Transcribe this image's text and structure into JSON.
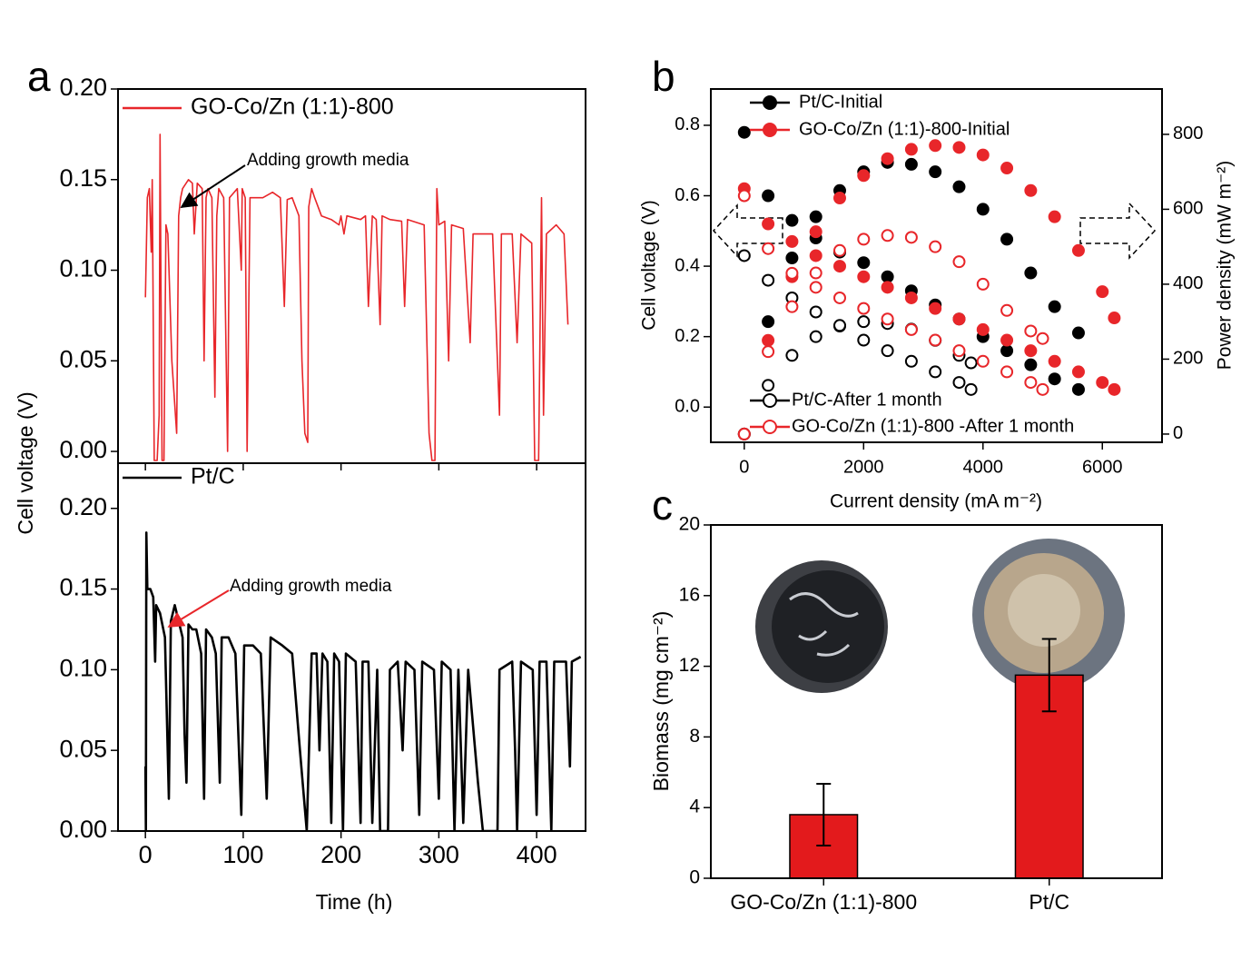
{
  "chart_data": [
    {
      "type": "line",
      "panel_label": "a",
      "series": [
        {
          "name": "GO-Co/Zn (1:1)-800",
          "color": "#e8262a",
          "x": [
            0,
            2,
            4,
            6,
            7,
            9,
            12,
            14,
            15,
            17,
            19,
            21,
            23,
            27,
            32,
            34,
            36,
            38,
            44,
            48,
            50,
            53,
            58,
            60,
            62,
            64,
            68,
            71,
            73,
            75,
            80,
            84,
            86,
            94,
            98,
            99,
            102,
            104,
            107,
            120,
            130,
            138,
            142,
            145,
            150,
            157,
            160,
            163,
            166,
            167,
            170,
            173,
            180,
            190,
            198,
            200,
            203,
            206,
            220,
            225,
            228,
            232,
            236,
            240,
            242,
            250,
            262,
            265,
            268,
            285,
            290,
            293,
            296,
            298,
            300,
            306,
            310,
            313,
            325,
            332,
            335,
            355,
            362,
            364,
            375,
            380,
            384,
            395,
            398,
            402,
            405,
            407,
            410,
            420,
            428,
            432
          ],
          "values": [
            0.085,
            0.14,
            0.145,
            0.11,
            0.15,
            -0.005,
            -0.005,
            0.02,
            0.175,
            -0.005,
            -0.005,
            0.125,
            0.12,
            0.05,
            0.01,
            0.13,
            0.14,
            0.145,
            0.15,
            0.148,
            0.12,
            0.148,
            0.145,
            0.05,
            0.14,
            0.145,
            0.14,
            0.03,
            0.13,
            0.145,
            0.14,
            0.0,
            0.14,
            0.145,
            0.1,
            0.145,
            0.14,
            0.0,
            0.14,
            0.14,
            0.143,
            0.14,
            0.08,
            0.139,
            0.14,
            0.13,
            0.05,
            0.01,
            0.005,
            0.135,
            0.145,
            0.14,
            0.13,
            0.128,
            0.125,
            0.13,
            0.12,
            0.13,
            0.128,
            0.13,
            0.08,
            0.13,
            0.128,
            0.07,
            0.13,
            0.128,
            0.127,
            0.08,
            0.128,
            0.125,
            0.01,
            -0.005,
            -0.005,
            0.145,
            0.125,
            0.127,
            0.05,
            0.125,
            0.123,
            0.06,
            0.12,
            0.12,
            0.02,
            0.12,
            0.12,
            0.06,
            0.12,
            0.115,
            -0.005,
            -0.005,
            0.14,
            0.02,
            0.12,
            0.125,
            0.12,
            0.07
          ]
        }
      ],
      "ylim": [
        -0.0065,
        0.2
      ],
      "yticks": [
        {
          "value": 0,
          "label": "0.00"
        },
        0.05,
        {
          "value": 0.1,
          "label": "0.10"
        },
        0.15,
        {
          "value": 0.2,
          "label": "0.20"
        }
      ],
      "annotations": [
        {
          "text": "Adding growth media",
          "arrow_color": "#000000"
        }
      ]
    },
    {
      "type": "line",
      "series": [
        {
          "name": "Pt/C",
          "color": "#000000",
          "x": [
            0,
            0.5,
            1,
            2,
            5,
            8,
            10,
            11,
            15,
            20,
            24,
            26,
            30,
            34,
            38,
            40,
            42,
            44,
            48,
            52,
            57,
            60,
            62,
            68,
            72,
            76,
            78,
            85,
            92,
            98,
            101,
            110,
            118,
            124,
            128,
            140,
            150,
            158,
            165,
            170,
            175,
            178,
            181,
            186,
            190,
            193,
            198,
            202,
            205,
            215,
            220,
            222,
            228,
            232,
            237,
            240,
            248,
            250,
            258,
            263,
            266,
            275,
            280,
            283,
            295,
            300,
            303,
            312,
            316,
            320,
            325,
            330,
            340,
            345,
            360,
            362,
            375,
            378,
            380,
            384,
            396,
            400,
            403,
            410,
            415,
            418,
            430,
            434,
            436,
            445
          ],
          "values": [
            0.04,
            0.0,
            0.185,
            0.15,
            0.15,
            0.145,
            0.105,
            0.14,
            0.135,
            0.12,
            0.02,
            0.13,
            0.14,
            0.13,
            0.12,
            0.06,
            0.03,
            0.128,
            0.125,
            0.125,
            0.11,
            0.02,
            0.125,
            0.12,
            0.11,
            0.03,
            0.12,
            0.12,
            0.11,
            0.01,
            0.115,
            0.115,
            0.11,
            0.02,
            0.12,
            0.115,
            0.11,
            0.05,
            0.0,
            0.11,
            0.11,
            0.05,
            0.11,
            0.105,
            0.005,
            0.11,
            0.105,
            0.0,
            0.11,
            0.105,
            0.005,
            0.105,
            0.105,
            0.005,
            0.1,
            0.0,
            0.0,
            0.1,
            0.105,
            0.05,
            0.105,
            0.1,
            0.01,
            0.105,
            0.1,
            0.02,
            0.105,
            0.1,
            0.0,
            0.1,
            0.005,
            0.1,
            0.03,
            0.0,
            0.0,
            0.1,
            0.105,
            0.05,
            0.0,
            0.105,
            0.1,
            0.01,
            0.105,
            0.105,
            0.0,
            0.105,
            0.105,
            0.04,
            0.105,
            0.108
          ]
        }
      ],
      "x_label": "Time (h)",
      "y_label": "Cell voltage (V)",
      "xlim": [
        -28,
        450
      ],
      "xticks": [
        0,
        100,
        200,
        300,
        400
      ],
      "ylim": [
        0,
        0.228
      ],
      "yticks": [
        {
          "value": 0,
          "label": "0.00"
        },
        0.05,
        {
          "value": 0.1,
          "label": "0.10"
        },
        0.15,
        {
          "value": 0.2,
          "label": "0.20"
        }
      ],
      "annotations": [
        {
          "text": "Adding growth media",
          "arrow_color": "#e8262a"
        }
      ]
    },
    {
      "type": "scatter",
      "panel_label": "b",
      "x_label": "Current density (mA m⁻²)",
      "y_label": "Cell voltage (V)",
      "y2_label": "Power density (mW m⁻²)",
      "xlim": [
        -560,
        7000
      ],
      "xticks": [
        0,
        2000,
        4000,
        6000
      ],
      "ylim": [
        -0.1,
        0.903
      ],
      "yticks": [
        {
          "value": 0,
          "label": "0.0"
        },
        0.2,
        0.4,
        0.6,
        0.8
      ],
      "y2lim": [
        -22,
        921
      ],
      "y2ticks": [
        0,
        200,
        400,
        600,
        800
      ],
      "series": [
        {
          "name": "Pt/C-Initial",
          "color": "#000000",
          "marker": "filled",
          "x": [
            0,
            400,
            800,
            1200,
            1600,
            2000,
            2400,
            2800,
            3200,
            3600,
            4000,
            4400,
            4800,
            5200,
            5600
          ],
          "values": [
            0.78,
            0.6,
            0.53,
            0.48,
            0.44,
            0.41,
            0.37,
            0.33,
            0.29,
            0.25,
            0.2,
            0.16,
            0.12,
            0.08,
            0.05
          ],
          "power": [
            0,
            300,
            470,
            580,
            650,
            700,
            725,
            720,
            700,
            660,
            600,
            520,
            430,
            340,
            270
          ]
        },
        {
          "name": "GO-Co/Zn (1:1)-800-Initial",
          "color": "#e8262a",
          "marker": "filled",
          "x": [
            0,
            400,
            800,
            1200,
            1600,
            2000,
            2400,
            2800,
            3200,
            3600,
            4000,
            4400,
            4800,
            5200,
            5600,
            6000,
            6200
          ],
          "values": [
            0.62,
            0.52,
            0.47,
            0.43,
            0.4,
            0.37,
            0.34,
            0.31,
            0.28,
            0.25,
            0.22,
            0.19,
            0.16,
            0.13,
            0.1,
            0.07,
            0.05
          ],
          "power": [
            0,
            250,
            420,
            540,
            630,
            690,
            735,
            760,
            770,
            765,
            745,
            710,
            650,
            580,
            490,
            380,
            310
          ]
        },
        {
          "name": "Pt/C-After 1 month",
          "color": "#000000",
          "marker": "open",
          "x": [
            0,
            400,
            800,
            1200,
            1600,
            2000,
            2400,
            2800,
            3200,
            3600,
            3800
          ],
          "values": [
            0.43,
            0.36,
            0.31,
            0.27,
            0.23,
            0.19,
            0.16,
            0.13,
            0.1,
            0.07,
            0.05
          ],
          "power": [
            0,
            130,
            210,
            260,
            290,
            300,
            295,
            280,
            250,
            210,
            190
          ]
        },
        {
          "name": "GO-Co/Zn (1:1)-800 -After 1 month",
          "color": "#e8262a",
          "marker": "open",
          "x": [
            0,
            400,
            800,
            1200,
            1600,
            2000,
            2400,
            2800,
            3200,
            3600,
            4000,
            4400,
            4800,
            5000
          ],
          "values": [
            0.6,
            0.45,
            0.38,
            0.34,
            0.31,
            0.28,
            0.25,
            0.22,
            0.19,
            0.16,
            0.13,
            0.1,
            0.07,
            0.05
          ],
          "power": [
            0,
            220,
            340,
            430,
            490,
            520,
            530,
            525,
            500,
            460,
            400,
            330,
            275,
            255
          ]
        }
      ]
    },
    {
      "type": "bar",
      "panel_label": "c",
      "y_label": "Biomass (mg cm⁻²)",
      "categories": [
        "GO-Co/Zn (1:1)-800",
        "Pt/C"
      ],
      "values": [
        3.6,
        11.5
      ],
      "errors": [
        1.75,
        2.05
      ],
      "color": "#e31a1c",
      "ylim": [
        0,
        20
      ],
      "yticks": [
        0,
        4,
        8,
        12,
        16,
        20
      ]
    }
  ]
}
